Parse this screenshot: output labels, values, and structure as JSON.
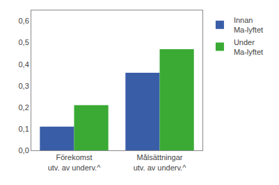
{
  "chart_data": {
    "type": "bar",
    "categories": [
      "Förekomst\nutv. av underv.^",
      "Målsättningar\nutv. av underv.^"
    ],
    "series": [
      {
        "name": "Innan\nMa-lyftet",
        "color": "#3a5da8",
        "values": [
          0.11,
          0.36
        ]
      },
      {
        "name": "Under\nMa-lyftet",
        "color": "#3aaa35",
        "values": [
          0.21,
          0.47
        ]
      }
    ],
    "ylim": [
      0.0,
      0.65
    ],
    "yticks": [
      {
        "value": 0.0,
        "label": "0,0"
      },
      {
        "value": 0.1,
        "label": "0,1"
      },
      {
        "value": 0.2,
        "label": "0,2"
      },
      {
        "value": 0.3,
        "label": "0,3"
      },
      {
        "value": 0.4,
        "label": "0,4"
      },
      {
        "value": 0.5,
        "label": "0,5"
      },
      {
        "value": 0.6,
        "label": "0,6"
      }
    ],
    "grid": false,
    "legend": "right"
  }
}
